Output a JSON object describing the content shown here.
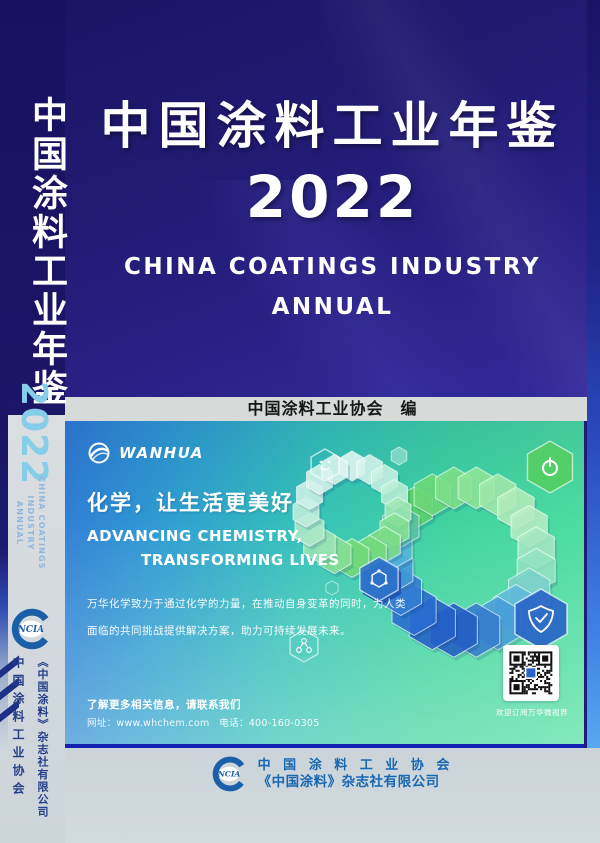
{
  "spine": {
    "title": "中国涂料工业年鉴",
    "year": "2022",
    "subtitle_line1": "CHINA COATINGS INDUSTRY",
    "subtitle_line2": "ANNUAL",
    "logo_text": "NCIA",
    "org": "中国涂料工业协会",
    "publisher": "《中国涂料》杂志社有限公司"
  },
  "front": {
    "title": "中国涂料工业年鉴",
    "year": "2022",
    "subtitle_line1": "CHINA COATINGS INDUSTRY",
    "subtitle_line2": "ANNUAL",
    "editor": "中国涂料工业协会　编"
  },
  "banner": {
    "brand": "WANHUA",
    "slogan_cn": "化学，让生活更美好",
    "slogan_en1": "ADVANCING CHEMISTRY,",
    "slogan_en2": "TRANSFORMING LIVES",
    "body1": "万华化学致力于通过化学的力量，在推动自身变革的同时，为人类",
    "body2": "面临的共同挑战提供解决方案，助力可持续发展未来。",
    "contact1": "了解更多相关信息，请联系我们",
    "contact2": "网址：www.whchem.com　电话：400-160-0305",
    "qr_caption": "欢迎订阅万华微视界"
  },
  "footer": {
    "logo_text": "NCIA",
    "line1": "中 国 涂 料 工 业 协 会",
    "line2": "《中国涂料》杂志社有限公司"
  },
  "icons": {
    "wanhua-logo-icon": "swirl-circle",
    "ncia-logo-icon": "C-ring-with-NCIA",
    "qr-code": "qr-code-pattern",
    "plug-hexagon-icon": "power-symbol-hexagon",
    "shield-hexagon-icon": "shield-check-hexagon",
    "atom-hexagon-icon": "molecule-hexagon",
    "face-hexagon-icon": "face-outline-hexagon",
    "molecule-hexagon-icon": "molecule-outline-hexagon"
  },
  "colors": {
    "navy": "#1c1668",
    "spine_year_cyan": "#85cde9",
    "band_gray": "#d6dad9",
    "banner_blue": "#2f7ad6",
    "banner_green": "#4fdf9e",
    "banner_border": "#1522b4",
    "brand_blue": "#1a5fa8",
    "footer_text_blue": "#1767b2"
  }
}
